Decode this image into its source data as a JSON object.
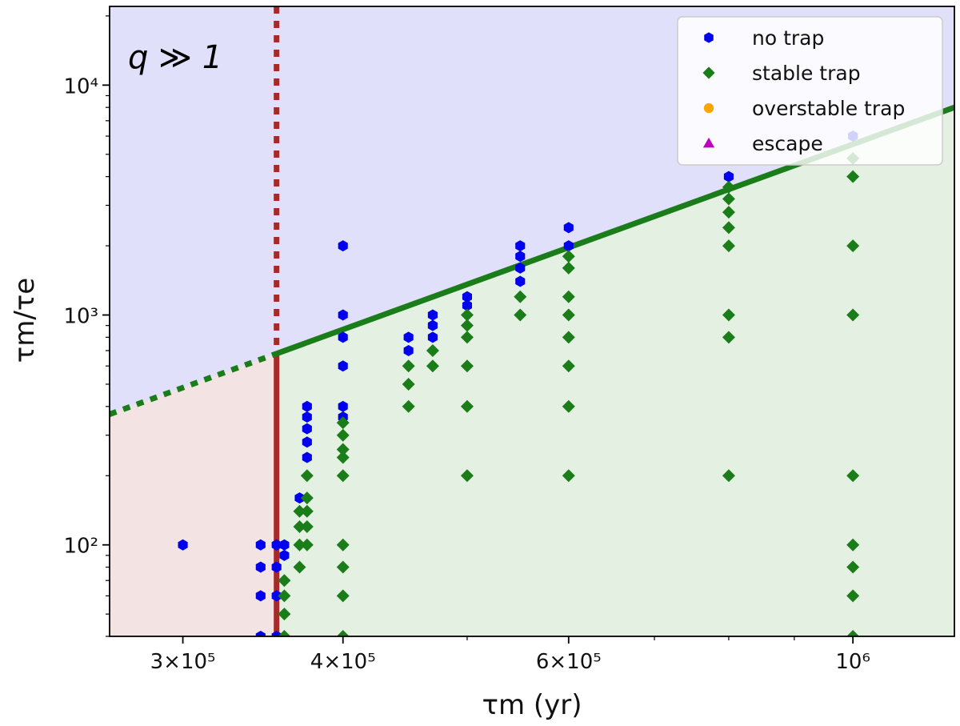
{
  "chart_data": {
    "type": "scatter",
    "x_scale": "log",
    "y_scale": "log",
    "xlim": [
      263000,
      1200000
    ],
    "ylim": [
      40,
      22000
    ],
    "xlabel": "τm (yr)",
    "ylabel": "τm/τe",
    "annotation": "q ≫ 1",
    "x_tick_labels": [
      {
        "value": 300000,
        "label": "3×10⁵"
      },
      {
        "value": 400000,
        "label": "4×10⁵"
      },
      {
        "value": 600000,
        "label": "6×10⁵"
      },
      {
        "value": 1000000,
        "label": "10⁶"
      }
    ],
    "y_tick_labels": [
      {
        "value": 100,
        "label": "10²"
      },
      {
        "value": 1000,
        "label": "10³"
      },
      {
        "value": 10000,
        "label": "10⁴"
      }
    ],
    "legend": {
      "location": "upper right",
      "entries": [
        {
          "label": "no trap",
          "color": "#0000ee",
          "marker": "hexagon"
        },
        {
          "label": "stable trap",
          "color": "#1a7d1a",
          "marker": "diamond"
        },
        {
          "label": "overstable trap",
          "color": "#ffa500",
          "marker": "circle"
        },
        {
          "label": "escape",
          "color": "#c000c0",
          "marker": "triangle"
        }
      ]
    },
    "regions": {
      "upper_color": "#e0e0fb",
      "lower_right_color": "#e4f0e1",
      "lower_left_color": "#f3e3e3"
    },
    "boundary_line": {
      "color": "#1a7d1a",
      "points": [
        [
          263000,
          370
        ],
        [
          1200000,
          8000
        ]
      ],
      "dashed_until_x": 355000
    },
    "vertical_line": {
      "color": "#a52a2a",
      "x": 355000,
      "solid_until_y": 680
    },
    "series": [
      {
        "name": "no trap",
        "color": "#0000ee",
        "marker": "hexagon",
        "points": [
          [
            300000,
            100
          ],
          [
            345000,
            100
          ],
          [
            345000,
            80
          ],
          [
            345000,
            60
          ],
          [
            345000,
            40
          ],
          [
            355000,
            100
          ],
          [
            355000,
            80
          ],
          [
            355000,
            60
          ],
          [
            355000,
            40
          ],
          [
            360000,
            100
          ],
          [
            360000,
            90
          ],
          [
            370000,
            160
          ],
          [
            375000,
            400
          ],
          [
            375000,
            360
          ],
          [
            375000,
            320
          ],
          [
            375000,
            280
          ],
          [
            375000,
            240
          ],
          [
            400000,
            2000
          ],
          [
            400000,
            1000
          ],
          [
            400000,
            800
          ],
          [
            400000,
            600
          ],
          [
            400000,
            400
          ],
          [
            400000,
            360
          ],
          [
            450000,
            800
          ],
          [
            450000,
            700
          ],
          [
            470000,
            1000
          ],
          [
            470000,
            900
          ],
          [
            470000,
            800
          ],
          [
            500000,
            1200
          ],
          [
            500000,
            1100
          ],
          [
            550000,
            2000
          ],
          [
            550000,
            1800
          ],
          [
            550000,
            1600
          ],
          [
            550000,
            1400
          ],
          [
            600000,
            2400
          ],
          [
            600000,
            2000
          ],
          [
            800000,
            4000
          ],
          [
            1000000,
            6000
          ]
        ]
      },
      {
        "name": "stable trap",
        "color": "#1a7d1a",
        "marker": "diamond",
        "points": [
          [
            360000,
            70
          ],
          [
            360000,
            60
          ],
          [
            360000,
            50
          ],
          [
            360000,
            40
          ],
          [
            370000,
            140
          ],
          [
            370000,
            120
          ],
          [
            370000,
            100
          ],
          [
            370000,
            80
          ],
          [
            375000,
            200
          ],
          [
            375000,
            160
          ],
          [
            375000,
            140
          ],
          [
            375000,
            120
          ],
          [
            375000,
            100
          ],
          [
            400000,
            340
          ],
          [
            400000,
            300
          ],
          [
            400000,
            260
          ],
          [
            400000,
            240
          ],
          [
            400000,
            200
          ],
          [
            400000,
            100
          ],
          [
            400000,
            80
          ],
          [
            400000,
            60
          ],
          [
            400000,
            40
          ],
          [
            450000,
            600
          ],
          [
            450000,
            500
          ],
          [
            450000,
            400
          ],
          [
            470000,
            700
          ],
          [
            470000,
            600
          ],
          [
            500000,
            1000
          ],
          [
            500000,
            900
          ],
          [
            500000,
            800
          ],
          [
            500000,
            600
          ],
          [
            500000,
            400
          ],
          [
            500000,
            200
          ],
          [
            550000,
            1200
          ],
          [
            550000,
            1000
          ],
          [
            600000,
            1800
          ],
          [
            600000,
            1600
          ],
          [
            600000,
            1200
          ],
          [
            600000,
            1000
          ],
          [
            600000,
            800
          ],
          [
            600000,
            600
          ],
          [
            600000,
            400
          ],
          [
            600000,
            200
          ],
          [
            800000,
            3600
          ],
          [
            800000,
            3200
          ],
          [
            800000,
            2800
          ],
          [
            800000,
            2400
          ],
          [
            800000,
            2000
          ],
          [
            800000,
            1000
          ],
          [
            800000,
            800
          ],
          [
            800000,
            200
          ],
          [
            1000000,
            4800
          ],
          [
            1000000,
            4000
          ],
          [
            1000000,
            2000
          ],
          [
            1000000,
            1000
          ],
          [
            1000000,
            200
          ],
          [
            1000000,
            100
          ],
          [
            1000000,
            80
          ],
          [
            1000000,
            60
          ],
          [
            1000000,
            40
          ]
        ]
      },
      {
        "name": "overstable trap",
        "color": "#ffa500",
        "marker": "circle",
        "points": []
      },
      {
        "name": "escape",
        "color": "#c000c0",
        "marker": "triangle",
        "points": []
      }
    ]
  }
}
